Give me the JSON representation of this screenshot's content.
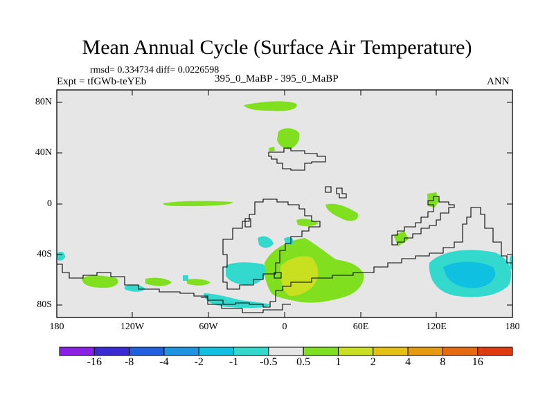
{
  "title": "Mean Annual Cycle (Surface Air Temperature)",
  "stats": "rmsd= 0.334734 diff= 0.0226598",
  "experiment": "Expt = tfGWb-teYEb",
  "comparison": "395_0_MaBP - 395_0_MaBP",
  "season": "ANN",
  "lat_ticks": [
    "80N",
    "40N",
    "0",
    "40S",
    "80S"
  ],
  "lon_ticks": [
    "180",
    "120W",
    "60W",
    "0",
    "60E",
    "120E",
    "180"
  ],
  "colorbar": {
    "colors": [
      "#8a1fe6",
      "#3a2ad4",
      "#1f5fe0",
      "#1e95e0",
      "#10c0e0",
      "#33d9cc",
      "#e6e6e6",
      "#80e020",
      "#c8e020",
      "#e6c010",
      "#e69a10",
      "#e66a10",
      "#e03a10"
    ],
    "labels": [
      "-16",
      "-8",
      "-4",
      "-2",
      "-1",
      "-0.5",
      "0.5",
      "1",
      "2",
      "4",
      "8",
      "16"
    ]
  },
  "colors": {
    "background": "#e6e6e6",
    "positive_small": "#80e020",
    "positive_mid": "#c8e020",
    "negative_small": "#33d9cc",
    "negative_mid": "#10c0e0"
  }
}
